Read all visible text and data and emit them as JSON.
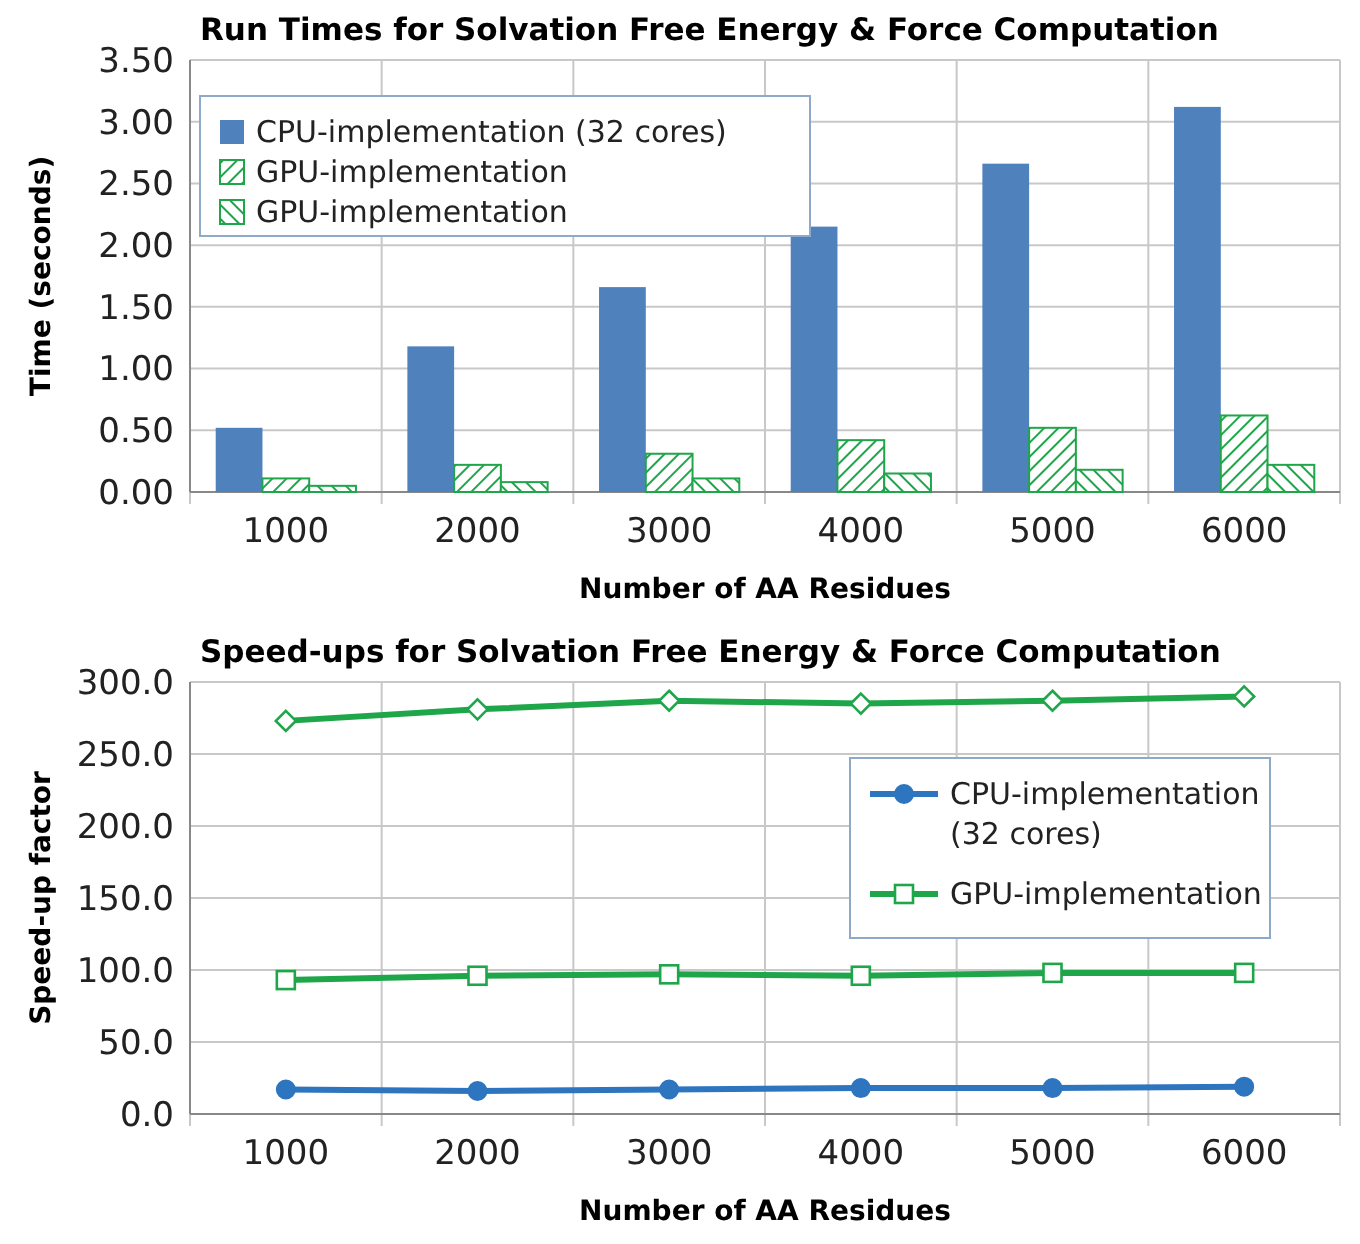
{
  "chart_data": [
    {
      "type": "bar",
      "title": "Run Times for Solvation Free Energy & Force Computation",
      "xlabel": "Number of AA Residues",
      "ylabel": "Time (seconds)",
      "categories": [
        "1000",
        "2000",
        "3000",
        "4000",
        "5000",
        "6000"
      ],
      "series": [
        {
          "name": "CPU-implementation (32 cores)",
          "color": "#4f81bd",
          "values": [
            0.52,
            1.18,
            1.66,
            2.15,
            2.66,
            3.12
          ]
        },
        {
          "name": "GPU-implementation",
          "color": "#1fa64a",
          "values": [
            0.11,
            0.22,
            0.31,
            0.42,
            0.52,
            0.62
          ]
        },
        {
          "name": "GPU-implementation",
          "color": "#1fa64a",
          "values": [
            0.05,
            0.08,
            0.11,
            0.15,
            0.18,
            0.22
          ]
        }
      ],
      "ylim": [
        0,
        3.5
      ],
      "yticks": [
        {
          "value": 0,
          "label": "0.00"
        },
        {
          "value": 0.5,
          "label": "0.50"
        },
        {
          "value": 1,
          "label": "1.00"
        },
        {
          "value": 1.5,
          "label": "1.50"
        },
        {
          "value": 2,
          "label": "2.00"
        },
        {
          "value": 2.5,
          "label": "2.50"
        },
        {
          "value": 3,
          "label": "3.00"
        },
        {
          "value": 3.5,
          "label": "3.50"
        }
      ],
      "grid": true,
      "legend": "top left"
    },
    {
      "type": "line",
      "title": "Speed-ups for Solvation Free Energy & Force Computation",
      "xlabel": "Number of AA Residues",
      "ylabel": "Speed-up factor",
      "categories": [
        "1000",
        "2000",
        "3000",
        "4000",
        "5000",
        "6000"
      ],
      "series": [
        {
          "name": "CPU-implementation (32 cores)",
          "color": "#2e75c0",
          "marker": "circle",
          "values": [
            17,
            16,
            17,
            18,
            18,
            19
          ]
        },
        {
          "name": "GPU-implementation",
          "color": "#1fa64a",
          "marker": "square",
          "values": [
            93,
            96,
            97,
            96,
            98,
            98
          ]
        },
        {
          "color": "#1fa64a",
          "marker": "diamond",
          "values": [
            273,
            281,
            287,
            285,
            287,
            290
          ]
        }
      ],
      "ylim": [
        0,
        300
      ],
      "yticks": [
        {
          "value": 0,
          "label": "0.0"
        },
        {
          "value": 50,
          "label": "50.0"
        },
        {
          "value": 100,
          "label": "100.0"
        },
        {
          "value": 150,
          "label": "150.0"
        },
        {
          "value": 200,
          "label": "200.0"
        },
        {
          "value": 250,
          "label": "250.0"
        },
        {
          "value": 300,
          "label": "300.0"
        }
      ],
      "grid": true,
      "legend": "right"
    }
  ]
}
